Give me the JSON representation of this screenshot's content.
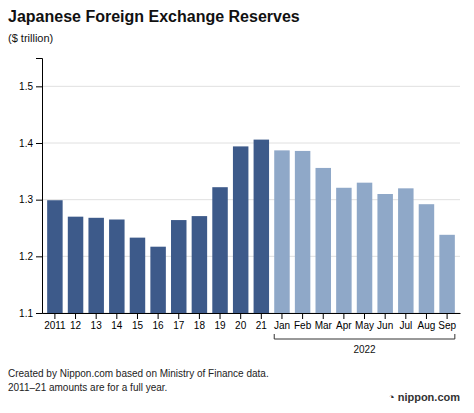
{
  "chart_data": {
    "type": "bar",
    "title": "Japanese Foreign Exchange Reserves",
    "ylabel": "($ trillion)",
    "categories": [
      "2011",
      "12",
      "13",
      "14",
      "15",
      "16",
      "17",
      "18",
      "19",
      "20",
      "21",
      "Jan",
      "Feb",
      "Mar",
      "Apr",
      "May",
      "Jun",
      "Jul",
      "Aug",
      "Sep"
    ],
    "values": [
      1.299,
      1.27,
      1.268,
      1.265,
      1.233,
      1.217,
      1.264,
      1.271,
      1.322,
      1.394,
      1.406,
      1.387,
      1.386,
      1.356,
      1.321,
      1.33,
      1.31,
      1.32,
      1.292,
      1.238
    ],
    "colors": [
      "#3d5a8a",
      "#3d5a8a",
      "#3d5a8a",
      "#3d5a8a",
      "#3d5a8a",
      "#3d5a8a",
      "#3d5a8a",
      "#3d5a8a",
      "#3d5a8a",
      "#3d5a8a",
      "#3d5a8a",
      "#8fa8c8",
      "#8fa8c8",
      "#8fa8c8",
      "#8fa8c8",
      "#8fa8c8",
      "#8fa8c8",
      "#8fa8c8",
      "#8fa8c8",
      "#8fa8c8"
    ],
    "ylim": [
      1.1,
      1.55
    ],
    "yticks": [
      1.1,
      1.2,
      1.3,
      1.4,
      1.5
    ],
    "grid": true,
    "annotations": [
      {
        "text": "2022",
        "categories": [
          "Jan",
          "Sep"
        ]
      },
      {
        "text": "Created by Nippon.com based on Ministry of Finance data."
      },
      {
        "text": "2011–21 amounts are for a full year."
      },
      {
        "text": "◔ nippon.com"
      }
    ]
  }
}
